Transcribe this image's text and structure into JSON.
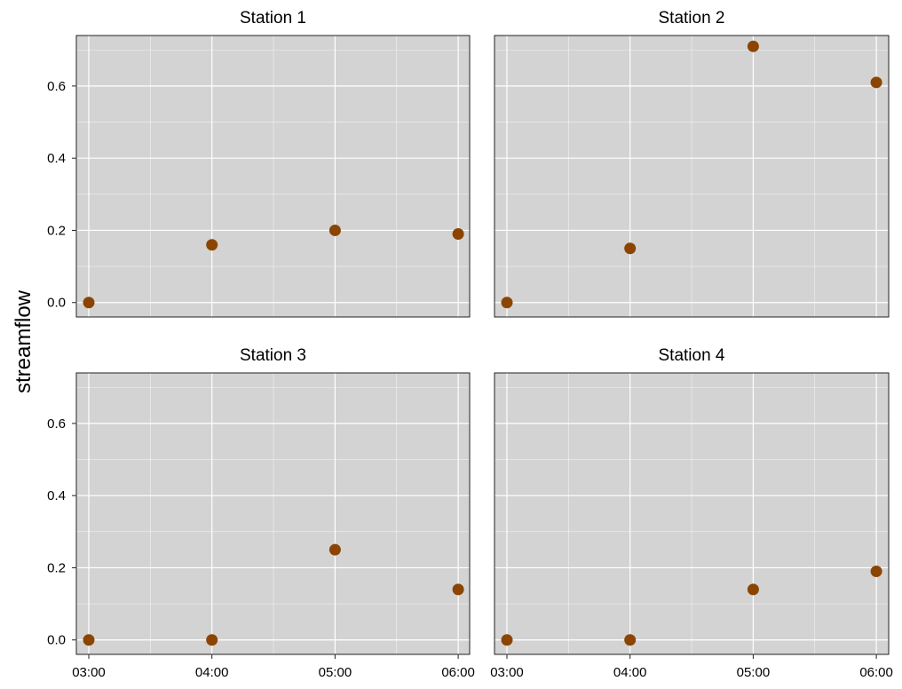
{
  "chart_data": {
    "type": "scatter",
    "ylabel": "streamflow",
    "xlabel": "",
    "x_ticks": [
      "03:00",
      "04:00",
      "05:00",
      "06:00"
    ],
    "ylim": [
      -0.04,
      0.74
    ],
    "y_ticks": [
      0.0,
      0.2,
      0.4,
      0.6
    ],
    "y_tick_labels": [
      "0.0",
      "0.2",
      "0.4",
      "0.6"
    ],
    "grid": true,
    "panel_background": "#d3d3d3",
    "grid_color": "#ffffff",
    "point_color": "#8b4500",
    "panels": [
      {
        "title": "Station 1",
        "x": [
          "03:00",
          "04:00",
          "05:00",
          "06:00"
        ],
        "y": [
          0.0,
          0.16,
          0.2,
          0.19
        ]
      },
      {
        "title": "Station 2",
        "x": [
          "03:00",
          "04:00",
          "05:00",
          "06:00"
        ],
        "y": [
          0.0,
          0.15,
          0.71,
          0.61
        ]
      },
      {
        "title": "Station 3",
        "x": [
          "03:00",
          "04:00",
          "05:00",
          "06:00"
        ],
        "y": [
          0.0,
          0.0,
          0.25,
          0.14
        ]
      },
      {
        "title": "Station 4",
        "x": [
          "03:00",
          "04:00",
          "05:00",
          "06:00"
        ],
        "y": [
          0.0,
          0.0,
          0.14,
          0.19
        ]
      }
    ]
  }
}
